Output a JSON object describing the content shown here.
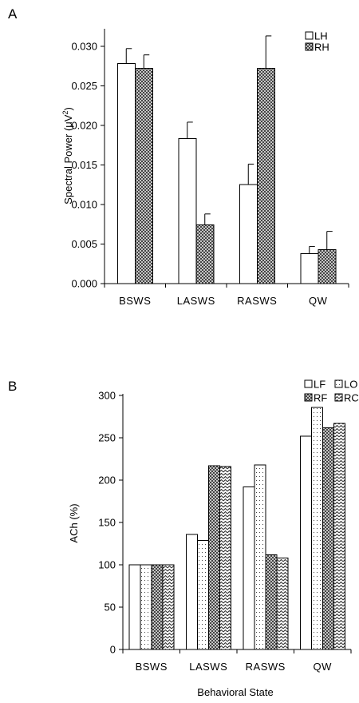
{
  "chart_data": [
    {
      "panel_label": "A",
      "type": "bar",
      "categories": [
        "BSWS",
        "LASWS",
        "RASWS",
        "QW"
      ],
      "ylabel": "Spectral Power (μV²)",
      "ylabel_main": "Spectral Power (μV",
      "ylabel_sup": "2",
      "ylabel_end": ")",
      "xlabel": "",
      "ylim": [
        0,
        0.032
      ],
      "yticks": [
        0,
        0.005,
        0.01,
        0.015,
        0.02,
        0.025,
        0.03
      ],
      "ytick_labels": [
        "0.000",
        "0.005",
        "0.010",
        "0.015",
        "0.020",
        "0.025",
        "0.030"
      ],
      "legend_position": "top-right",
      "series": [
        {
          "name": "LH",
          "pattern": "white",
          "values": [
            0.0278,
            0.0183,
            0.0125,
            0.0038
          ],
          "errors": [
            0.0019,
            0.0021,
            0.0026,
            0.0009
          ]
        },
        {
          "name": "RH",
          "pattern": "crosshatch",
          "values": [
            0.0272,
            0.0074,
            0.0272,
            0.0043
          ],
          "errors": [
            0.0017,
            0.0014,
            0.0041,
            0.0023
          ]
        }
      ]
    },
    {
      "panel_label": "B",
      "type": "bar",
      "categories": [
        "BSWS",
        "LASWS",
        "RASWS",
        "QW"
      ],
      "ylabel": "ACh (%)",
      "xlabel": "Behavioral State",
      "ylim": [
        0,
        300
      ],
      "yticks": [
        0,
        50,
        100,
        150,
        200,
        250,
        300
      ],
      "ytick_labels": [
        "0",
        "50",
        "100",
        "150",
        "200",
        "250",
        "300"
      ],
      "legend_position": "top-right",
      "series": [
        {
          "name": "LF",
          "pattern": "white",
          "values": [
            100,
            136,
            192,
            252
          ]
        },
        {
          "name": "LO",
          "pattern": "dots",
          "values": [
            100,
            129,
            218,
            286
          ]
        },
        {
          "name": "RF",
          "pattern": "crosshatch",
          "values": [
            100,
            217,
            112,
            262
          ]
        },
        {
          "name": "RC",
          "pattern": "zigzag",
          "values": [
            100,
            216,
            108,
            267
          ]
        }
      ]
    }
  ]
}
